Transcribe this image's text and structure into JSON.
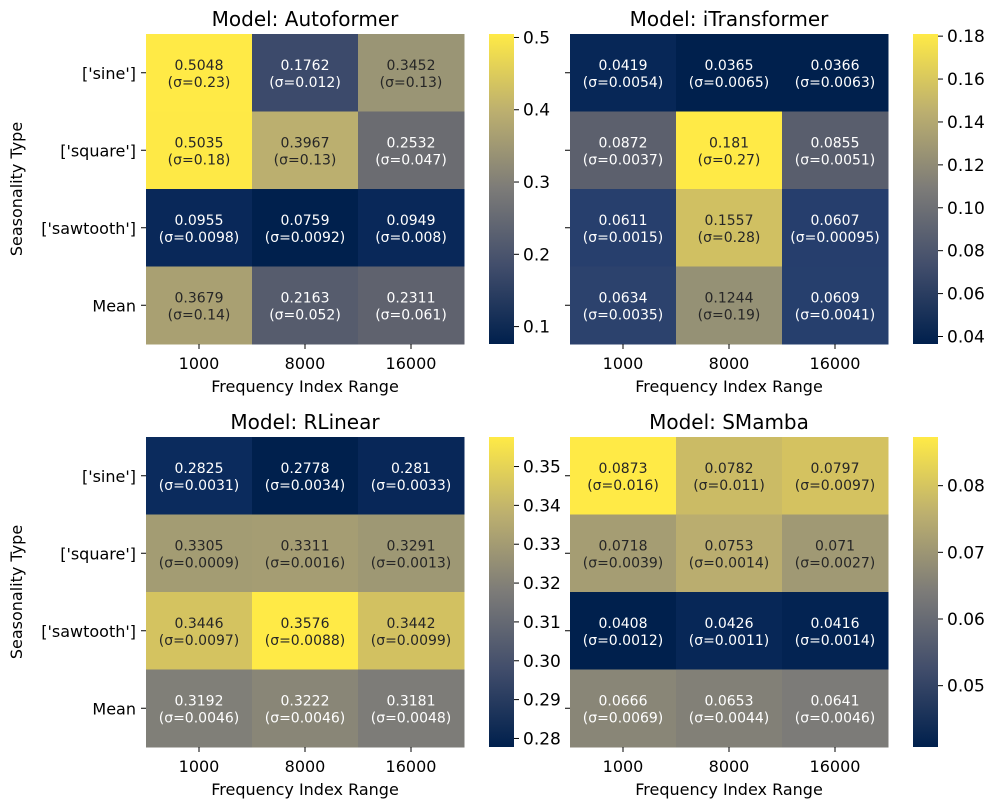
{
  "chart_data": [
    {
      "type": "heatmap",
      "title": "Model: Autoformer",
      "xlabel": "Frequency Index Range",
      "ylabel": "Seasonality Type",
      "x_categories": [
        "1000",
        "8000",
        "16000"
      ],
      "y_categories": [
        "['sine']",
        "['square']",
        "['sawtooth']",
        "Mean"
      ],
      "values": [
        [
          0.5048,
          0.1762,
          0.3452
        ],
        [
          0.5035,
          0.3967,
          0.2532
        ],
        [
          0.0955,
          0.0759,
          0.0949
        ],
        [
          0.3679,
          0.2163,
          0.2311
        ]
      ],
      "cell_labels": [
        [
          "0.5048",
          "0.1762",
          "0.3452"
        ],
        [
          "0.5035",
          "0.3967",
          "0.2532"
        ],
        [
          "0.0955",
          "0.0759",
          "0.0949"
        ],
        [
          "0.3679",
          "0.2163",
          "0.2311"
        ]
      ],
      "sigma_labels": [
        [
          "(σ=0.23)",
          "(σ=0.012)",
          "(σ=0.13)"
        ],
        [
          "(σ=0.18)",
          "(σ=0.13)",
          "(σ=0.047)"
        ],
        [
          "(σ=0.0098)",
          "(σ=0.0092)",
          "(σ=0.008)"
        ],
        [
          "(σ=0.14)",
          "(σ=0.052)",
          "(σ=0.061)"
        ]
      ],
      "vmin": 0.0759,
      "vmax": 0.5048,
      "colorbar_ticks": [
        0.1,
        0.2,
        0.3,
        0.4,
        0.5
      ],
      "colorbar_tick_labels": [
        "0.1",
        "0.2",
        "0.3",
        "0.4",
        "0.5"
      ],
      "colormap": "cividis"
    },
    {
      "type": "heatmap",
      "title": "Model: iTransformer",
      "xlabel": "Frequency Index Range",
      "ylabel": "",
      "x_categories": [
        "1000",
        "8000",
        "16000"
      ],
      "y_categories": [
        "['sine']",
        "['square']",
        "['sawtooth']",
        "Mean"
      ],
      "values": [
        [
          0.0419,
          0.0365,
          0.0366
        ],
        [
          0.0872,
          0.181,
          0.0855
        ],
        [
          0.0611,
          0.1557,
          0.0607
        ],
        [
          0.0634,
          0.1244,
          0.0609
        ]
      ],
      "cell_labels": [
        [
          "0.0419",
          "0.0365",
          "0.0366"
        ],
        [
          "0.0872",
          "0.181",
          "0.0855"
        ],
        [
          "0.0611",
          "0.1557",
          "0.0607"
        ],
        [
          "0.0634",
          "0.1244",
          "0.0609"
        ]
      ],
      "sigma_labels": [
        [
          "(σ=0.0054)",
          "(σ=0.0065)",
          "(σ=0.0063)"
        ],
        [
          "(σ=0.0037)",
          "(σ=0.27)",
          "(σ=0.0051)"
        ],
        [
          "(σ=0.0015)",
          "(σ=0.28)",
          "(σ=0.00095)"
        ],
        [
          "(σ=0.0035)",
          "(σ=0.19)",
          "(σ=0.0041)"
        ]
      ],
      "vmin": 0.0365,
      "vmax": 0.181,
      "colorbar_ticks": [
        0.04,
        0.06,
        0.08,
        0.1,
        0.12,
        0.14,
        0.16,
        0.18
      ],
      "colorbar_tick_labels": [
        "0.04",
        "0.06",
        "0.08",
        "0.10",
        "0.12",
        "0.14",
        "0.16",
        "0.18"
      ],
      "colormap": "cividis"
    },
    {
      "type": "heatmap",
      "title": "Model: RLinear",
      "xlabel": "Frequency Index Range",
      "ylabel": "Seasonality Type",
      "x_categories": [
        "1000",
        "8000",
        "16000"
      ],
      "y_categories": [
        "['sine']",
        "['square']",
        "['sawtooth']",
        "Mean"
      ],
      "values": [
        [
          0.2825,
          0.2778,
          0.281
        ],
        [
          0.3305,
          0.3311,
          0.3291
        ],
        [
          0.3446,
          0.3576,
          0.3442
        ],
        [
          0.3192,
          0.3222,
          0.3181
        ]
      ],
      "cell_labels": [
        [
          "0.2825",
          "0.2778",
          "0.281"
        ],
        [
          "0.3305",
          "0.3311",
          "0.3291"
        ],
        [
          "0.3446",
          "0.3576",
          "0.3442"
        ],
        [
          "0.3192",
          "0.3222",
          "0.3181"
        ]
      ],
      "sigma_labels": [
        [
          "(σ=0.0031)",
          "(σ=0.0034)",
          "(σ=0.0033)"
        ],
        [
          "(σ=0.0009)",
          "(σ=0.0016)",
          "(σ=0.0013)"
        ],
        [
          "(σ=0.0097)",
          "(σ=0.0088)",
          "(σ=0.0099)"
        ],
        [
          "(σ=0.0046)",
          "(σ=0.0046)",
          "(σ=0.0048)"
        ]
      ],
      "vmin": 0.2778,
      "vmax": 0.3576,
      "colorbar_ticks": [
        0.28,
        0.29,
        0.3,
        0.31,
        0.32,
        0.33,
        0.34,
        0.35
      ],
      "colorbar_tick_labels": [
        "0.28",
        "0.29",
        "0.30",
        "0.31",
        "0.32",
        "0.33",
        "0.34",
        "0.35"
      ],
      "colormap": "cividis"
    },
    {
      "type": "heatmap",
      "title": "Model: SMamba",
      "xlabel": "Frequency Index Range",
      "ylabel": "",
      "x_categories": [
        "1000",
        "8000",
        "16000"
      ],
      "y_categories": [
        "['sine']",
        "['square']",
        "['sawtooth']",
        "Mean"
      ],
      "values": [
        [
          0.0873,
          0.0782,
          0.0797
        ],
        [
          0.0718,
          0.0753,
          0.071
        ],
        [
          0.0408,
          0.0426,
          0.0416
        ],
        [
          0.0666,
          0.0653,
          0.0641
        ]
      ],
      "cell_labels": [
        [
          "0.0873",
          "0.0782",
          "0.0797"
        ],
        [
          "0.0718",
          "0.0753",
          "0.071"
        ],
        [
          "0.0408",
          "0.0426",
          "0.0416"
        ],
        [
          "0.0666",
          "0.0653",
          "0.0641"
        ]
      ],
      "sigma_labels": [
        [
          "(σ=0.016)",
          "(σ=0.011)",
          "(σ=0.0097)"
        ],
        [
          "(σ=0.0039)",
          "(σ=0.0014)",
          "(σ=0.0027)"
        ],
        [
          "(σ=0.0012)",
          "(σ=0.0011)",
          "(σ=0.0014)"
        ],
        [
          "(σ=0.0069)",
          "(σ=0.0044)",
          "(σ=0.0046)"
        ]
      ],
      "vmin": 0.0408,
      "vmax": 0.0873,
      "colorbar_ticks": [
        0.05,
        0.06,
        0.07,
        0.08
      ],
      "colorbar_tick_labels": [
        "0.05",
        "0.06",
        "0.07",
        "0.08"
      ],
      "colormap": "cividis"
    }
  ]
}
